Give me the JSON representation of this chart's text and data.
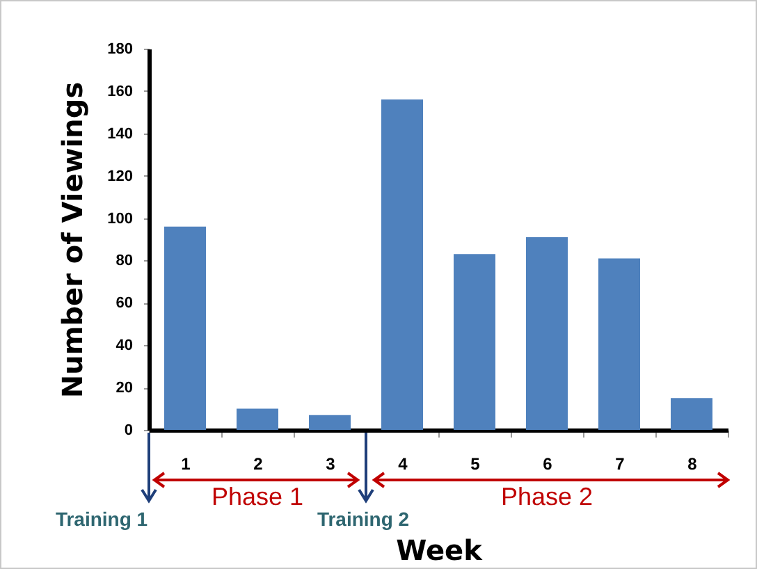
{
  "chart_data": {
    "type": "bar",
    "xlabel": "Week",
    "ylabel": "Number of Viewings",
    "categories": [
      "1",
      "2",
      "3",
      "4",
      "5",
      "6",
      "7",
      "8"
    ],
    "values": [
      96,
      10,
      7,
      156,
      83,
      91,
      81,
      15
    ],
    "color": "#4f81bd",
    "ylim": [
      0,
      180
    ],
    "yticks": [
      0,
      20,
      40,
      60,
      80,
      100,
      120,
      140,
      160,
      180
    ],
    "grid": false,
    "annotations": [
      "Training 1",
      "Phase 1",
      "Training 2",
      "Phase 2"
    ]
  }
}
